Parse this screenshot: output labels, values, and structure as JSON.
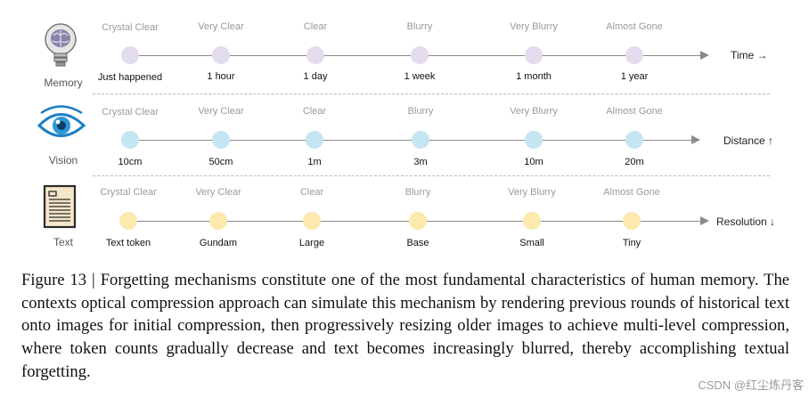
{
  "quality_levels": [
    "Crystal Clear",
    "Very Clear",
    "Clear",
    "Blurry",
    "Very Blurry",
    "Almost Gone"
  ],
  "rows": [
    {
      "label": "Memory",
      "icon": "lightbulb-brain-icon",
      "axis_label": "Time →",
      "values": [
        "Just happened",
        "1 hour",
        "1 day",
        "1 week",
        "1 month",
        "1 year"
      ]
    },
    {
      "label": "Vision",
      "icon": "eye-icon",
      "axis_label": "Distance ↑",
      "values": [
        "10cm",
        "50cm",
        "1m",
        "3m",
        "10m",
        "20m"
      ]
    },
    {
      "label": "Text",
      "icon": "document-icon",
      "axis_label": "Resolution ↓",
      "values": [
        "Text token",
        "Gundam",
        "Large",
        "Base",
        "Small",
        "Tiny"
      ]
    }
  ],
  "colors": {
    "memory_dot": "#e3dcee",
    "vision_dot": "#c5e5f2",
    "text_dot": "#fbe9ad",
    "axis": "#8a8a8a",
    "quality_text": "#9a9a9a"
  },
  "caption": "Figure 13 | Forgetting mechanisms constitute one of the most fundamental characteristics of human memory. The contexts optical compression approach can simulate this mechanism by rendering previous rounds of historical text onto images for initial compression, then progressively resizing older images to achieve multi-level compression, where token counts gradually decrease and text becomes increasingly blurred, thereby accomplishing textual forgetting.",
  "watermark": "CSDN @红尘炼丹客"
}
